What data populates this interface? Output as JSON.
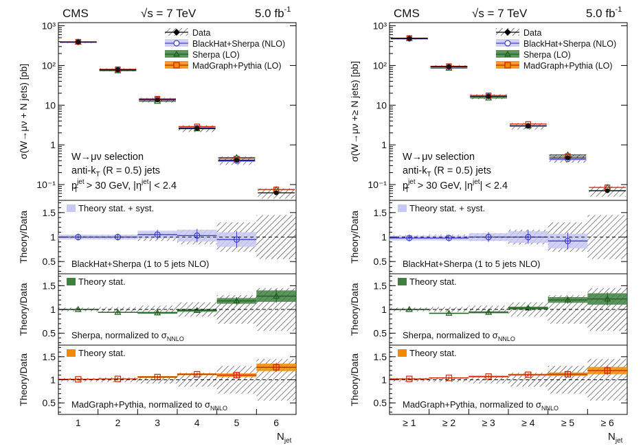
{
  "colors": {
    "bh_band": "#c8c8f2",
    "bh_line": "#3a3ad6",
    "sherpa_band": "#3f7f3f",
    "sherpa_line": "#1e5e1e",
    "mg_band": "#f08a00",
    "mg_line": "#d02000",
    "data": "#111111"
  },
  "chart_data": [
    {
      "type": "bar",
      "name": "left",
      "header": {
        "experiment": "CMS",
        "energy": "√s = 7 TeV",
        "lumi": "5.0 fb",
        "lumi_sup": "-1"
      },
      "categories": [
        "1",
        "2",
        "3",
        "4",
        "5",
        "6"
      ],
      "xlabel": "N",
      "xlabel_sub": "jet",
      "ylabel": "σ(W→μν + N jets) [pb]",
      "yscale": "log",
      "ylim": [
        0.04,
        1200
      ],
      "yticks": [
        "10³",
        "10²",
        "10",
        "1",
        "10⁻¹"
      ],
      "selection": [
        "W→μν selection",
        "anti-k_T (R = 0.5) jets",
        "p_T^jet > 30 GeV, |η^jet| < 2.4"
      ],
      "legend": [
        "Data",
        "BlackHat+Sherpa (NLO)",
        "Sherpa (LO)",
        "MadGraph+Pythia (LO)"
      ],
      "legend_position": "top-right",
      "series": [
        {
          "name": "Data",
          "values": [
            390,
            78,
            13.5,
            2.6,
            0.41,
            0.062
          ]
        },
        {
          "name": "BlackHat+Sherpa (NLO)",
          "values": [
            385,
            78,
            14,
            2.7,
            0.39,
            null
          ]
        },
        {
          "name": "Sherpa (LO)",
          "values": [
            390,
            74,
            12.5,
            2.55,
            0.48,
            0.075
          ]
        },
        {
          "name": "MadGraph+Pythia (LO)",
          "values": [
            395,
            80,
            14.5,
            2.9,
            0.45,
            0.075
          ]
        }
      ],
      "ratio_panels": [
        {
          "ylabel": "Theory/Data",
          "legend": "Theory stat. + syst.",
          "label": "BlackHat+Sherpa (1 to 5 jets NLO)",
          "ylim": [
            0.25,
            1.75
          ],
          "yticks": [
            "1.5",
            "1",
            "0.5"
          ],
          "values": [
            1.0,
            1.0,
            1.05,
            1.03,
            0.95,
            null
          ],
          "band": [
            0.05,
            0.05,
            0.08,
            0.12,
            0.15,
            null
          ],
          "data_unc": [
            0.04,
            0.05,
            0.08,
            0.15,
            0.3,
            0.45
          ]
        },
        {
          "ylabel": "Theory/Data",
          "legend": "Theory stat.",
          "label": "Sherpa, normalized to σ",
          "label_sub": "NNLO",
          "ylim": [
            0.25,
            1.75
          ],
          "yticks": [
            "1.5",
            "1",
            "0.5"
          ],
          "values": [
            1.0,
            0.94,
            0.93,
            0.98,
            1.18,
            1.28
          ],
          "band": [
            0.01,
            0.01,
            0.02,
            0.03,
            0.06,
            0.12
          ],
          "data_unc": [
            0.04,
            0.05,
            0.08,
            0.15,
            0.3,
            0.45
          ]
        },
        {
          "ylabel": "Theory/Data",
          "legend": "Theory stat.",
          "label": "MadGraph+Pythia, normalized to σ",
          "label_sub": "NNLO",
          "ylim": [
            0.25,
            1.75
          ],
          "yticks": [
            "1.5",
            "1",
            "0.5"
          ],
          "values": [
            1.01,
            1.02,
            1.06,
            1.12,
            1.1,
            1.27
          ],
          "band": [
            0.01,
            0.01,
            0.02,
            0.02,
            0.04,
            0.08
          ],
          "data_unc": [
            0.04,
            0.05,
            0.08,
            0.15,
            0.3,
            0.45
          ]
        }
      ]
    },
    {
      "type": "bar",
      "name": "right",
      "header": {
        "experiment": "CMS",
        "energy": "√s = 7 TeV",
        "lumi": "5.0 fb",
        "lumi_sup": "-1"
      },
      "categories": [
        "≥ 1",
        "≥ 2",
        "≥ 3",
        "≥ 4",
        "≥ 5",
        "≥ 6"
      ],
      "xlabel": "N",
      "xlabel_sub": "jet",
      "ylabel": "σ(W→μν +≥ N jets) [pb]",
      "yscale": "log",
      "ylim": [
        0.04,
        1200
      ],
      "yticks": [
        "10³",
        "10²",
        "10",
        "1",
        "10⁻¹"
      ],
      "selection": [
        "W→μν selection",
        "anti-k_T (R = 0.5) jets",
        "p_T^jet > 30 GeV, |η^jet| < 2.4"
      ],
      "legend": [
        "Data",
        "BlackHat+Sherpa (NLO)",
        "Sherpa (LO)",
        "MadGraph+Pythia (LO)"
      ],
      "legend_position": "top-right",
      "series": [
        {
          "name": "Data",
          "values": [
            480,
            93,
            16.5,
            3.0,
            0.47,
            0.07
          ]
        },
        {
          "name": "BlackHat+Sherpa (NLO)",
          "values": [
            470,
            92,
            16.8,
            3.0,
            0.43,
            null
          ]
        },
        {
          "name": "Sherpa (LO)",
          "values": [
            480,
            86,
            15.2,
            3.0,
            0.56,
            0.085
          ]
        },
        {
          "name": "MadGraph+Pythia (LO)",
          "values": [
            490,
            96,
            17.6,
            3.35,
            0.52,
            0.085
          ]
        }
      ],
      "ratio_panels": [
        {
          "ylabel": "Theory/Data",
          "legend": "Theory stat. + syst.",
          "label": "BlackHat+Sherpa (1 to 5 jets NLO)",
          "ylim": [
            0.25,
            1.75
          ],
          "yticks": [
            "1.5",
            "1",
            "0.5"
          ],
          "values": [
            0.98,
            0.98,
            1.0,
            1.0,
            0.92,
            null
          ],
          "band": [
            0.05,
            0.05,
            0.08,
            0.12,
            0.15,
            null
          ],
          "data_unc": [
            0.04,
            0.05,
            0.08,
            0.15,
            0.3,
            0.45
          ]
        },
        {
          "ylabel": "Theory/Data",
          "legend": "Theory stat.",
          "label": "Sherpa, normalized to σ",
          "label_sub": "NNLO",
          "ylim": [
            0.25,
            1.75
          ],
          "yticks": [
            "1.5",
            "1",
            "0.5"
          ],
          "values": [
            1.0,
            0.92,
            0.94,
            1.03,
            1.2,
            1.22
          ],
          "band": [
            0.01,
            0.01,
            0.02,
            0.03,
            0.06,
            0.12
          ],
          "data_unc": [
            0.04,
            0.05,
            0.08,
            0.15,
            0.3,
            0.45
          ]
        },
        {
          "ylabel": "Theory/Data",
          "legend": "Theory stat.",
          "label": "MadGraph+Pythia, normalized to σ",
          "label_sub": "NNLO",
          "ylim": [
            0.25,
            1.75
          ],
          "yticks": [
            "1.5",
            "1",
            "0.5"
          ],
          "values": [
            1.02,
            1.04,
            1.07,
            1.11,
            1.12,
            1.2
          ],
          "band": [
            0.01,
            0.01,
            0.02,
            0.02,
            0.04,
            0.08
          ],
          "data_unc": [
            0.04,
            0.05,
            0.08,
            0.15,
            0.3,
            0.45
          ]
        }
      ]
    }
  ]
}
